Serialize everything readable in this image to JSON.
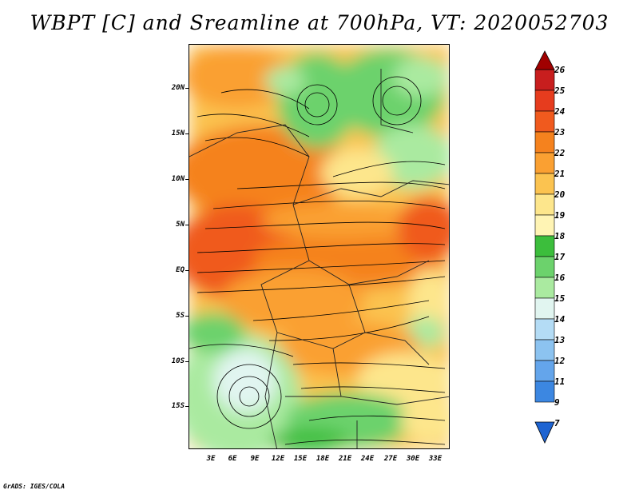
{
  "title": "WBPT [C] and Sreamline at 700hPa, VT: 2020052703",
  "footer": "GrADS: IGES/COLA",
  "map": {
    "latitude_labels": [
      "20N",
      "15N",
      "10N",
      "5N",
      "EQ",
      "5S",
      "10S",
      "15S"
    ],
    "longitude_labels": [
      "3E",
      "6E",
      "9E",
      "12E",
      "15E",
      "18E",
      "21E",
      "24E",
      "27E",
      "30E",
      "33E"
    ],
    "field": "wet-bulb potential temperature",
    "overlay": "streamlines"
  },
  "colorbar": {
    "levels": [
      "26",
      "25",
      "24",
      "23",
      "22",
      "21",
      "20",
      "19",
      "18",
      "17",
      "16",
      "15",
      "14",
      "13",
      "12",
      "11",
      "9",
      "7"
    ],
    "colors": [
      "#a00000",
      "#c81e1e",
      "#e63c1e",
      "#f05a1e",
      "#f5821e",
      "#faa032",
      "#fbc350",
      "#fde68c",
      "#fff4b4",
      "#3cbe3c",
      "#6cd26c",
      "#aaeaa0",
      "#e1f5f0",
      "#b4dcf5",
      "#8cc3f0",
      "#64a5eb",
      "#3c87e1",
      "#1e64d2"
    ]
  }
}
